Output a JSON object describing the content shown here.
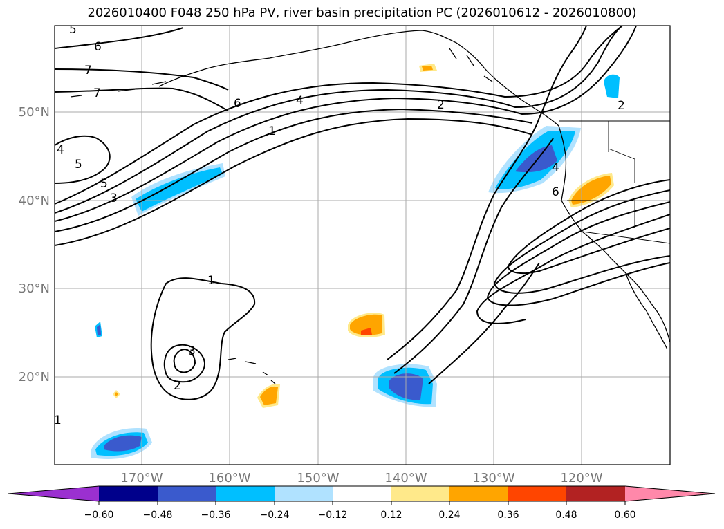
{
  "title": "2026010400 F048 250 hPa PV, river basin precipitation PC (2026010612 - 2026010800)",
  "lat_labels": [
    "50°N",
    "40°N",
    "30°N",
    "20°N"
  ],
  "lon_labels": [
    "170°W",
    "160°W",
    "150°W",
    "140°W",
    "130°W",
    "120°W"
  ],
  "contour_labels": [
    "5",
    "6",
    "7",
    "7",
    "6",
    "4",
    "2",
    "1",
    "5",
    "5",
    "3",
    "4",
    "1",
    "3",
    "2",
    "4",
    "6",
    "2",
    "1"
  ],
  "colorbar": {
    "tick_labels": [
      "−0.60",
      "−0.48",
      "−0.36",
      "−0.24",
      "−0.12",
      "0.12",
      "0.24",
      "0.36",
      "0.48",
      "0.60"
    ],
    "colors": [
      "#9b30d0",
      "#00008b",
      "#3a5acd",
      "#00bfff",
      "#b0e2ff",
      "#ffffff",
      "#ffe98a",
      "#ffa500",
      "#ff4500",
      "#b22222",
      "#ff88aa"
    ]
  },
  "colors": {
    "negative_light": "#b0e2ff",
    "negative_mid": "#00bfff",
    "negative_strong": "#3a5acd",
    "positive_light": "#ffe98a",
    "positive_mid": "#ffa500",
    "positive_strong": "#ff4500"
  }
}
